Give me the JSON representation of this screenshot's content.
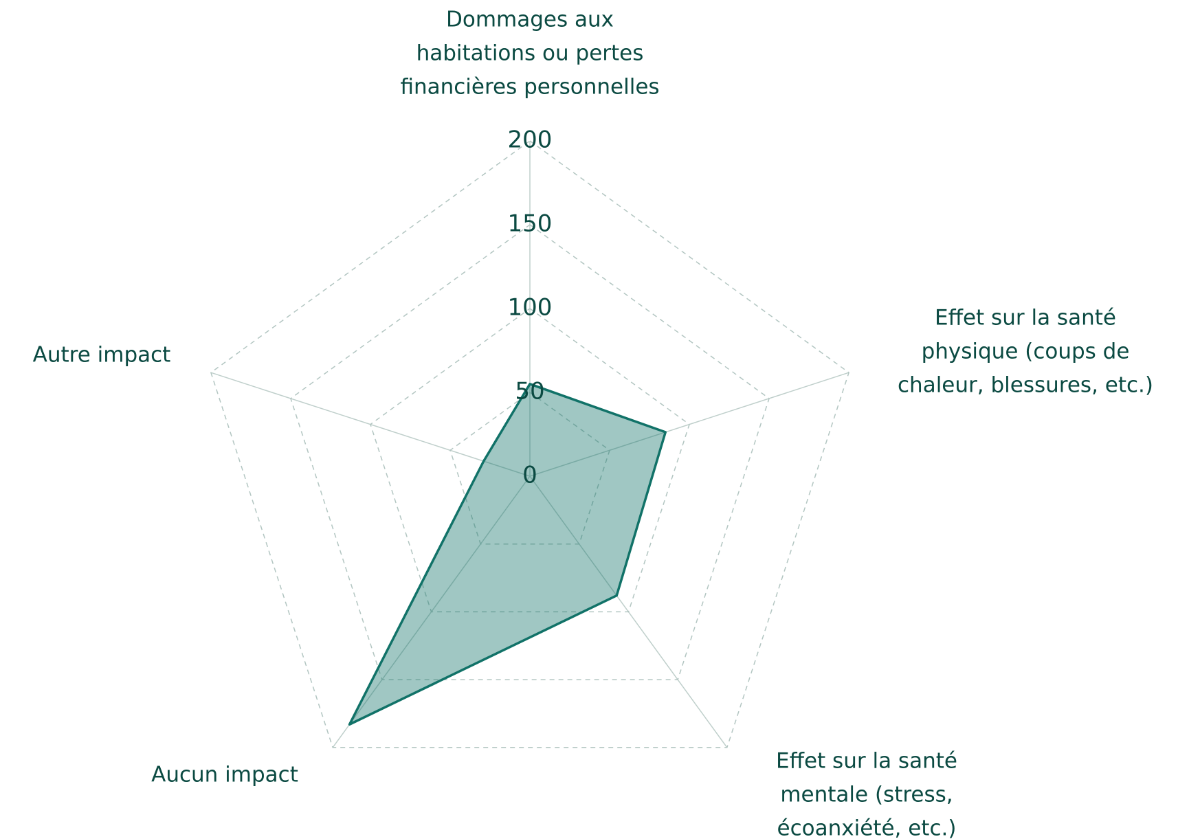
{
  "chart_data": {
    "type": "radar",
    "categories": [
      [
        "Dommages aux",
        "habitations ou pertes",
        "financières personnelles"
      ],
      [
        "Effet sur la santé",
        "physique (coups de",
        "chaleur, blessures, etc.)"
      ],
      [
        "Effet sur la santé",
        "mentale (stress,",
        "écoanxiété, etc.)"
      ],
      [
        "Aucun impact"
      ],
      [
        "Autre impact"
      ]
    ],
    "values": [
      55,
      85,
      88,
      183,
      29
    ],
    "color": "#117268",
    "ylim": [
      0,
      200
    ],
    "yticks": [
      0,
      50,
      100,
      150,
      200
    ],
    "grid": true
  }
}
